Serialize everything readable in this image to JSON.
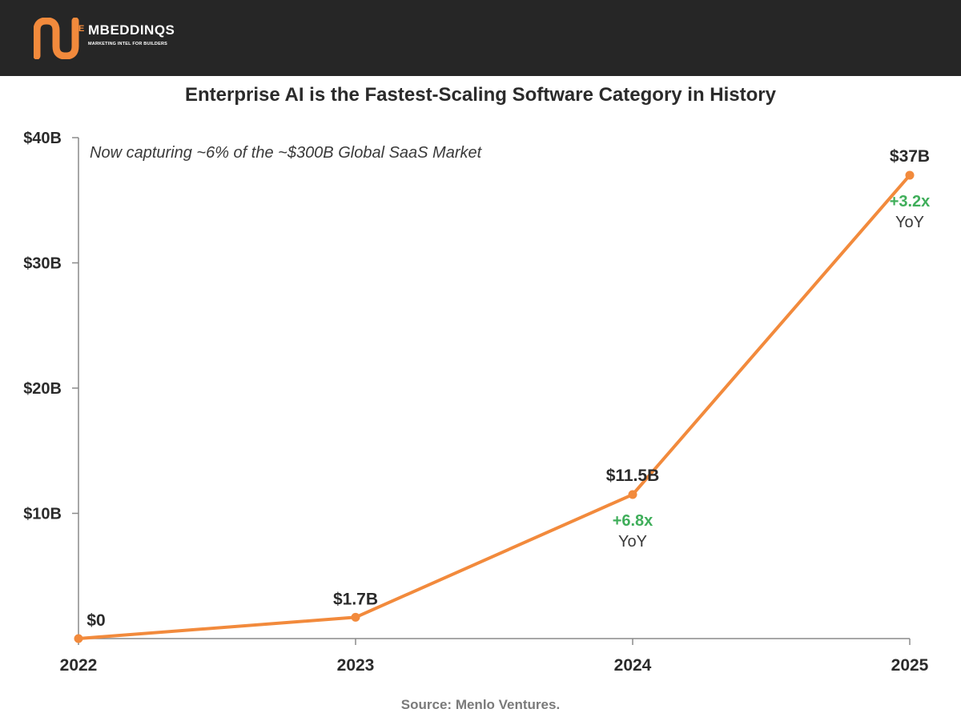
{
  "header": {
    "brand_name": "MBEDDINQS",
    "brand_initial": "E",
    "tagline": "MARKETING INTEL FOR BUILDERS",
    "background_color": "#262626",
    "accent_color": "#f28a3c"
  },
  "chart_data": {
    "type": "line",
    "title": "Enterprise AI is the Fastest-Scaling Software Category in History",
    "subtitle": "Now capturing ~6% of the ~$300B Global SaaS Market",
    "categories": [
      "2022",
      "2023",
      "2024",
      "2025"
    ],
    "x": [
      2022,
      2023,
      2024,
      2025
    ],
    "values": [
      0,
      1.7,
      11.5,
      37
    ],
    "data_labels": [
      "$0",
      "$1.7B",
      "$11.5B",
      "$37B"
    ],
    "growth_annotations": [
      null,
      null,
      {
        "multiplier": "+6.8x",
        "label": "YoY"
      },
      {
        "multiplier": "+3.2x",
        "label": "YoY"
      }
    ],
    "y_ticks": [
      10,
      20,
      30,
      40
    ],
    "y_tick_labels": [
      "$10B",
      "$20B",
      "$30B",
      "$40B"
    ],
    "ylim": [
      0,
      40
    ],
    "xlabel": "",
    "ylabel": "",
    "grid": false,
    "line_color": "#f28a3c",
    "growth_color": "#3fae5a"
  },
  "source": "Source: Menlo Ventures."
}
